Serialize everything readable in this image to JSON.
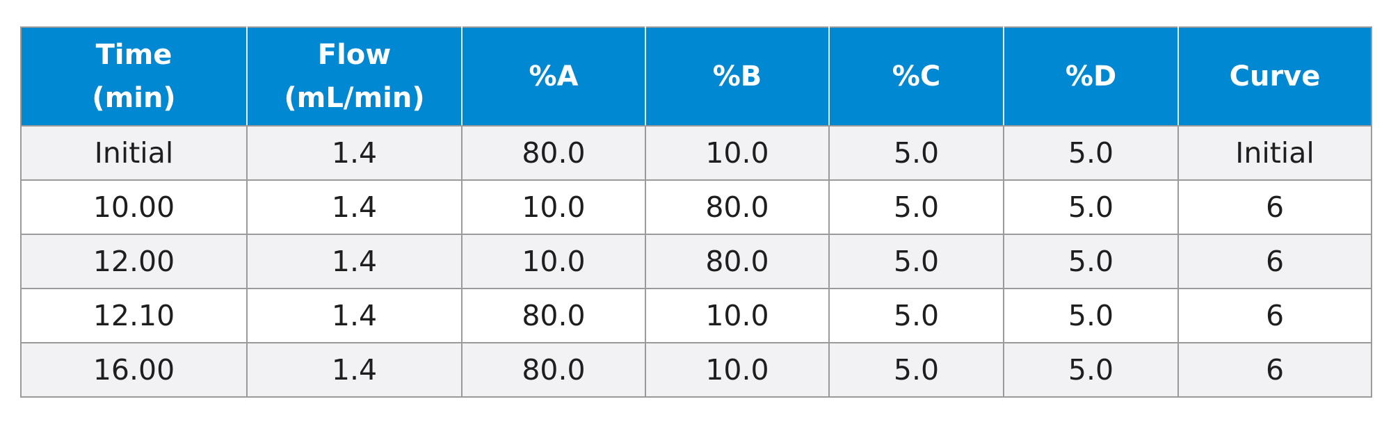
{
  "table": {
    "header": [
      [
        "Time",
        "(min)"
      ],
      [
        "Flow",
        "(mL/min)"
      ],
      [
        "%A"
      ],
      [
        "%B"
      ],
      [
        "%C"
      ],
      [
        "%D"
      ],
      [
        "Curve"
      ]
    ],
    "rows": [
      [
        "Initial",
        "1.4",
        "80.0",
        "10.0",
        "5.0",
        "5.0",
        "Initial"
      ],
      [
        "10.00",
        "1.4",
        "10.0",
        "80.0",
        "5.0",
        "5.0",
        "6"
      ],
      [
        "12.00",
        "1.4",
        "10.0",
        "80.0",
        "5.0",
        "5.0",
        "6"
      ],
      [
        "12.10",
        "1.4",
        "80.0",
        "10.0",
        "5.0",
        "5.0",
        "6"
      ],
      [
        "16.00",
        "1.4",
        "80.0",
        "10.0",
        "5.0",
        "5.0",
        "6"
      ]
    ],
    "colors": {
      "header_bg": "#0088d2",
      "header_text": "#ffffff",
      "row_alt_bg": "#f2f2f4",
      "row_bg": "#ffffff",
      "border": "#9a9a9a",
      "text": "#1e1e1e"
    }
  }
}
